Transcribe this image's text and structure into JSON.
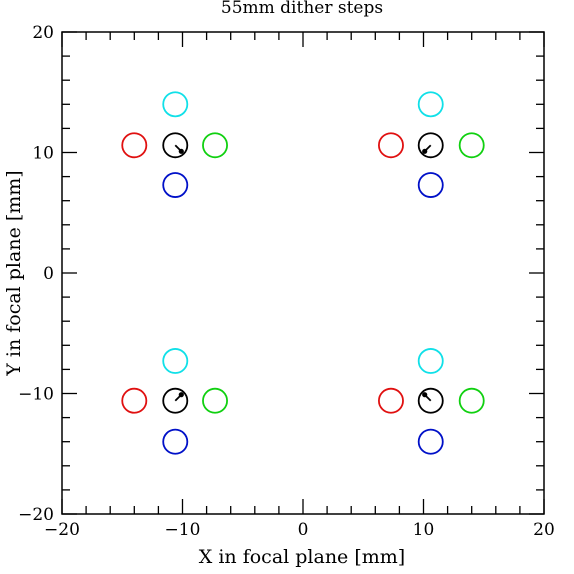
{
  "chart_data": {
    "type": "scatter",
    "title": "55mm dither steps",
    "xlabel": "X in focal plane [mm]",
    "ylabel": "Y in focal plane [mm]",
    "xlim": [
      -20,
      20
    ],
    "ylim": [
      -20,
      20
    ],
    "x_ticks": [
      -20,
      -10,
      0,
      10,
      20
    ],
    "y_ticks": [
      -20,
      -10,
      0,
      10,
      20
    ],
    "x_tick_labels": [
      "−20",
      "−10",
      "0",
      "10",
      "20"
    ],
    "y_tick_labels": [
      "−20",
      "−10",
      "0",
      "10",
      "20"
    ],
    "minor_tick_step": 2,
    "grid": false,
    "marker_radius_mm": 1.0,
    "groups": [
      {
        "center": [
          -10.6,
          10.6
        ],
        "points": [
          {
            "x": -10.6,
            "y": 10.6,
            "color": "#000000"
          },
          {
            "x": -14.0,
            "y": 10.6,
            "color": "#e01010"
          },
          {
            "x": -7.3,
            "y": 10.6,
            "color": "#10d010"
          },
          {
            "x": -10.6,
            "y": 14.0,
            "color": "#10e0e8"
          },
          {
            "x": -10.6,
            "y": 7.3,
            "color": "#0010c8"
          }
        ],
        "arrow": {
          "from": [
            -10.6,
            10.6
          ],
          "to": [
            -10.1,
            10.1
          ]
        }
      },
      {
        "center": [
          10.6,
          10.6
        ],
        "points": [
          {
            "x": 10.6,
            "y": 10.6,
            "color": "#000000"
          },
          {
            "x": 7.3,
            "y": 10.6,
            "color": "#e01010"
          },
          {
            "x": 14.0,
            "y": 10.6,
            "color": "#10d010"
          },
          {
            "x": 10.6,
            "y": 14.0,
            "color": "#10e0e8"
          },
          {
            "x": 10.6,
            "y": 7.3,
            "color": "#0010c8"
          }
        ],
        "arrow": {
          "from": [
            10.6,
            10.6
          ],
          "to": [
            10.1,
            10.1
          ]
        }
      },
      {
        "center": [
          -10.6,
          -10.6
        ],
        "points": [
          {
            "x": -10.6,
            "y": -10.6,
            "color": "#000000"
          },
          {
            "x": -14.0,
            "y": -10.6,
            "color": "#e01010"
          },
          {
            "x": -7.3,
            "y": -10.6,
            "color": "#10d010"
          },
          {
            "x": -10.6,
            "y": -7.3,
            "color": "#10e0e8"
          },
          {
            "x": -10.6,
            "y": -14.0,
            "color": "#0010c8"
          }
        ],
        "arrow": {
          "from": [
            -10.6,
            -10.6
          ],
          "to": [
            -10.1,
            -10.1
          ]
        }
      },
      {
        "center": [
          10.6,
          -10.6
        ],
        "points": [
          {
            "x": 10.6,
            "y": -10.6,
            "color": "#000000"
          },
          {
            "x": 7.3,
            "y": -10.6,
            "color": "#e01010"
          },
          {
            "x": 14.0,
            "y": -10.6,
            "color": "#10d010"
          },
          {
            "x": 10.6,
            "y": -7.3,
            "color": "#10e0e8"
          },
          {
            "x": 10.6,
            "y": -14.0,
            "color": "#0010c8"
          }
        ],
        "arrow": {
          "from": [
            10.6,
            -10.6
          ],
          "to": [
            10.1,
            -10.1
          ]
        }
      }
    ]
  }
}
